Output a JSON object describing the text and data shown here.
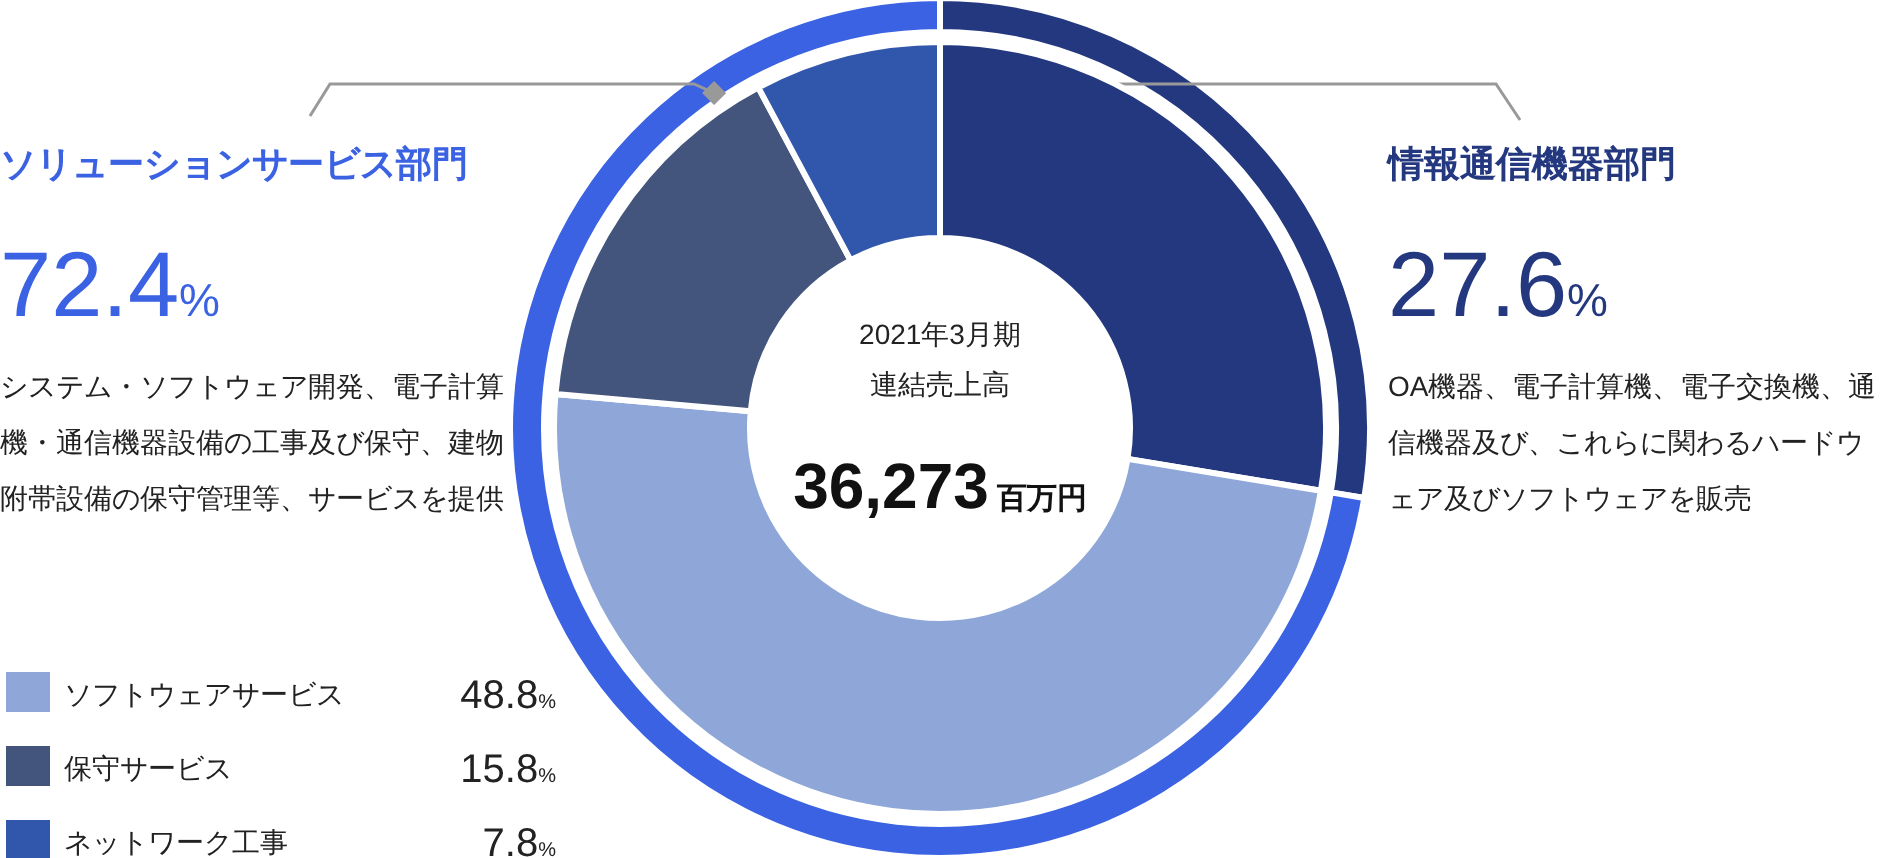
{
  "chart_data": [
    {
      "type": "donut",
      "categories": [
        "情報通信機器部門",
        "ソリューションサービス部門"
      ],
      "values": [
        27.6,
        72.4
      ],
      "colors": [
        "#23387e",
        "#3a62e2"
      ],
      "value_labels": [
        "27.6%",
        "72.4%"
      ],
      "annotations": [
        "2021年3月期",
        "連結売上高",
        "36,273百万円",
        "OA機器、電子計算機、電子交換機、通信機器及び、これらに関わるハードウェア及びソフトウェアを販売",
        "システム・ソフトウェア開発、電子計算機・通信機器設備の工事及び保守、建物附帯設備の保守管理等、サービスを提供"
      ]
    },
    {
      "type": "donut",
      "categories": [
        null,
        "ソフトウェアサービス",
        "保守サービス",
        "ネットワーク工事"
      ],
      "values": [
        27.6,
        48.8,
        15.8,
        7.8
      ],
      "colors": [
        "#23387e",
        "#8ea7d8",
        "#43557d",
        "#3157ad"
      ],
      "value_labels": [
        null,
        "48.8%",
        "15.8%",
        "7.8%"
      ],
      "legend": "bottom left"
    }
  ]
}
